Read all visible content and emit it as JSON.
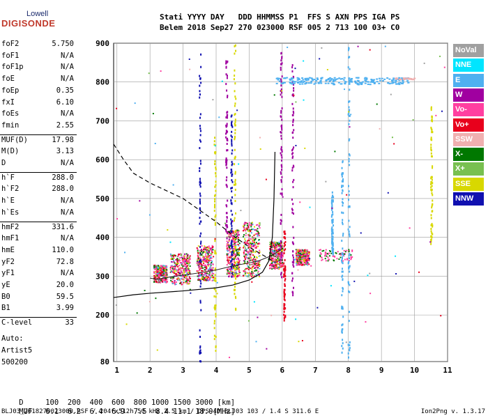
{
  "logo": {
    "top": "Lowell",
    "bottom": "DIGISONDE"
  },
  "header": {
    "line1": "Stati YYYY DAY   DDD HHMMSS P1  FFS S AXN PPS IGA PS",
    "line2": "Belem 2018 Sep27 270 023000 RSF 005 2 713 100 03+ C0"
  },
  "params_groups": [
    [
      {
        "name": "foF2",
        "value": "5.750"
      },
      {
        "name": "foF1",
        "value": "N/A"
      },
      {
        "name": "foF1p",
        "value": "N/A"
      },
      {
        "name": "foE",
        "value": "N/A"
      },
      {
        "name": "foEp",
        "value": "0.35"
      },
      {
        "name": "fxI",
        "value": "6.10"
      },
      {
        "name": "foEs",
        "value": "N/A"
      },
      {
        "name": "fmin",
        "value": "2.55"
      }
    ],
    [
      {
        "name": "MUF(D)",
        "value": "17.98"
      },
      {
        "name": "M(D)",
        "value": "3.13"
      },
      {
        "name": "D",
        "value": "N/A"
      }
    ],
    [
      {
        "name": "h`F",
        "value": "288.0"
      },
      {
        "name": "h`F2",
        "value": "288.0"
      },
      {
        "name": "h`E",
        "value": "N/A"
      },
      {
        "name": "h`Es",
        "value": "N/A"
      }
    ],
    [
      {
        "name": "hmF2",
        "value": "331.6"
      },
      {
        "name": "hmF1",
        "value": "N/A"
      },
      {
        "name": "hmE",
        "value": "110.0"
      },
      {
        "name": "yF2",
        "value": "72.8"
      },
      {
        "name": "yF1",
        "value": "N/A"
      },
      {
        "name": "yE",
        "value": "20.0"
      },
      {
        "name": "B0",
        "value": "59.5"
      },
      {
        "name": "B1",
        "value": "3.99"
      }
    ],
    [
      {
        "name": "C-level",
        "value": "33"
      }
    ]
  ],
  "auto": {
    "l1": "Auto:",
    "l2": "Artist5",
    "l3": "500200"
  },
  "legend": [
    {
      "label": "NoVal",
      "color": "#a0a0a0"
    },
    {
      "label": "NNE",
      "color": "#00e5ff"
    },
    {
      "label": "E",
      "color": "#4fb0f0"
    },
    {
      "label": "W",
      "color": "#a000a0"
    },
    {
      "label": "Vo-",
      "color": "#ff3fa0"
    },
    {
      "label": "Vo+",
      "color": "#e8001c"
    },
    {
      "label": "SSW",
      "color": "#f0b0b0"
    },
    {
      "label": "X-",
      "color": "#007800"
    },
    {
      "label": "X+",
      "color": "#78c050"
    },
    {
      "label": "SSE",
      "color": "#d8d800"
    },
    {
      "label": "NNW",
      "color": "#1010b0"
    }
  ],
  "muf_table": {
    "d_label": "D",
    "d_values": [
      "100",
      "200",
      "400",
      "600",
      "800",
      "1000",
      "1500",
      "3000",
      "[km]"
    ],
    "muf_label": "MUF",
    "muf_values": [
      "6.1",
      "6.2",
      "6.4",
      "6.9",
      "7.5",
      "8.4",
      "11.1",
      "18.0",
      "[MHz]"
    ]
  },
  "footer": {
    "left": "BLJ03_2018270023000.RSF / 204fx512h 50 kHz 2.5 km / DPS-4D BLJ03 103 / 1.4 S 311.6 E",
    "right": "Ion2Png v. 1.3.17"
  },
  "chart_data": {
    "type": "scatter",
    "x_ticks": [
      1,
      2,
      3,
      4,
      5,
      6,
      7,
      8,
      9,
      10,
      11
    ],
    "y_ticks": [
      80,
      200,
      300,
      400,
      500,
      600,
      700,
      800,
      900
    ],
    "xlim": [
      0.9,
      11
    ],
    "ylim": [
      80,
      900
    ],
    "grid": true,
    "profile_solid": [
      [
        0.9,
        245
      ],
      [
        1.5,
        252
      ],
      [
        2,
        256
      ],
      [
        3,
        262
      ],
      [
        4,
        270
      ],
      [
        4.5,
        277
      ],
      [
        5,
        290
      ],
      [
        5.4,
        310
      ],
      [
        5.6,
        340
      ],
      [
        5.7,
        400
      ],
      [
        5.75,
        500
      ],
      [
        5.78,
        620
      ]
    ],
    "profile_dashed": [
      [
        0.9,
        640
      ],
      [
        1.2,
        600
      ],
      [
        1.5,
        565
      ],
      [
        2,
        540
      ],
      [
        2.5,
        520
      ],
      [
        3,
        500
      ],
      [
        3.5,
        470
      ],
      [
        4,
        440
      ],
      [
        4.5,
        405
      ],
      [
        5,
        375
      ],
      [
        5.5,
        350
      ],
      [
        5.8,
        335
      ]
    ],
    "trace_F": [
      [
        2,
        295
      ],
      [
        2.2,
        292
      ],
      [
        2.5,
        296
      ],
      [
        2.8,
        300
      ],
      [
        3,
        303
      ],
      [
        3.3,
        306
      ],
      [
        3.6,
        310
      ],
      [
        4,
        316
      ],
      [
        4.3,
        322
      ],
      [
        4.6,
        328
      ],
      [
        5,
        334
      ],
      [
        5.3,
        340
      ],
      [
        5.6,
        350
      ],
      [
        5.8,
        360
      ],
      [
        6,
        370
      ]
    ]
  }
}
